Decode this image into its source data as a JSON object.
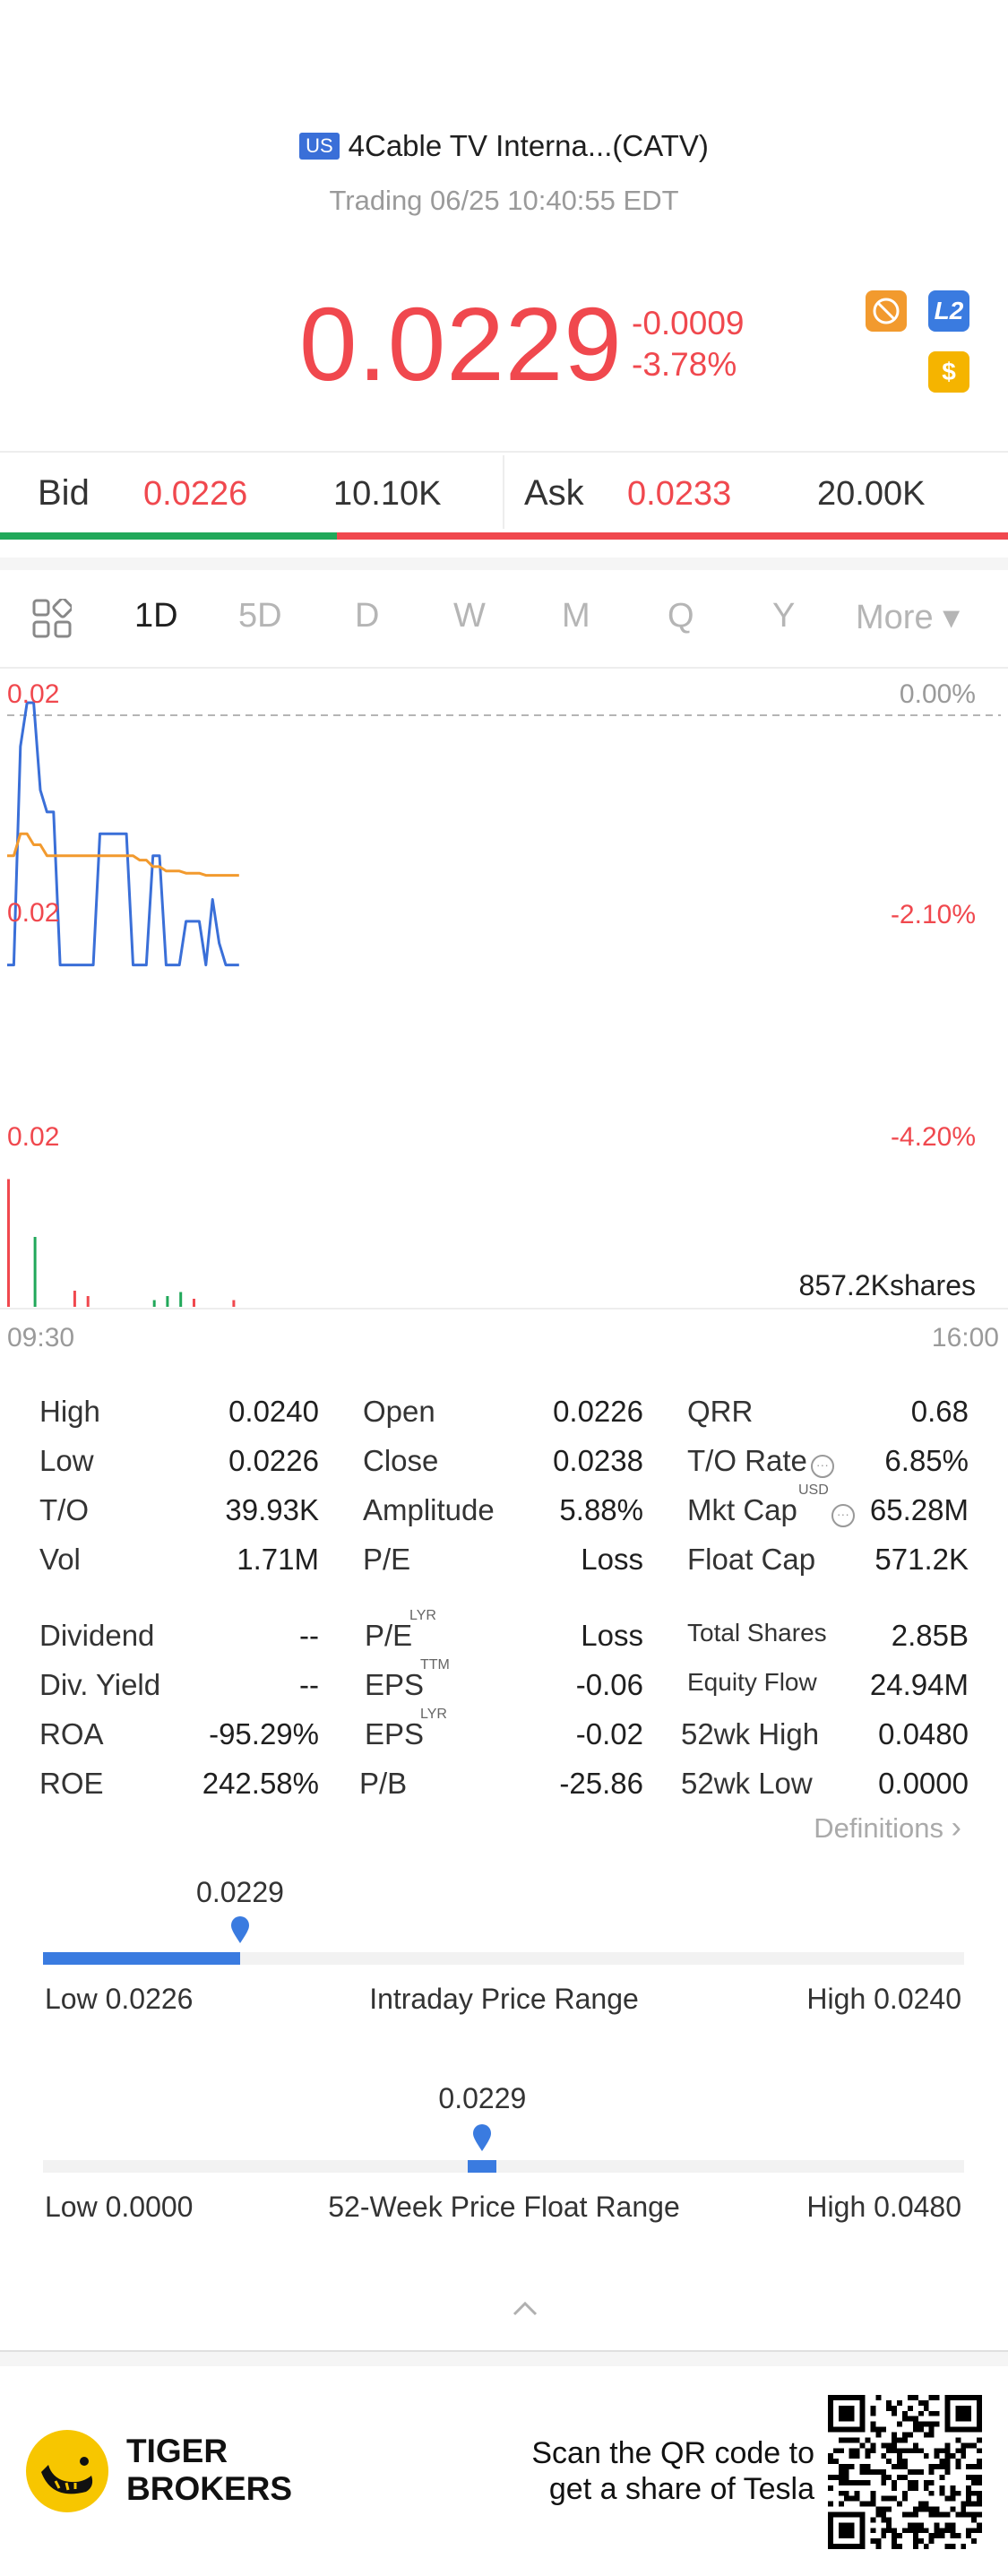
{
  "header": {
    "market_badge": "US",
    "title": "4Cable TV Interna...(CATV)",
    "status": "Trading 06/25 10:40:55 EDT"
  },
  "quote": {
    "price": "0.0229",
    "change": "-0.0009",
    "change_pct": "-3.78%",
    "badges": [
      {
        "name": "no-trade-icon",
        "label": "⊘",
        "color": "#f29a2e"
      },
      {
        "name": "level2-icon",
        "label": "L2",
        "color": "#3a7be0"
      },
      {
        "name": "dollar-icon",
        "label": "$",
        "color": "#f5b400"
      }
    ]
  },
  "bidask": {
    "bid_label": "Bid",
    "bid_price": "0.0226",
    "bid_size": "10.10K",
    "ask_label": "Ask",
    "ask_price": "0.0233",
    "ask_size": "20.00K",
    "bid_share": 0.334
  },
  "tabs": {
    "items": [
      "1D",
      "5D",
      "D",
      "W",
      "M",
      "Q",
      "Y",
      "More ▾"
    ],
    "active": "1D"
  },
  "chart_data": {
    "type": "line",
    "y_left_ticks": [
      "0.02",
      "0.02",
      "0.02"
    ],
    "y_right_ticks": [
      "0.00%",
      "-2.10%",
      "-4.20%"
    ],
    "x_ticks": [
      "09:30",
      "16:00"
    ],
    "volume_label": "857.2Kshares",
    "ylim": [
      0.02193,
      0.0238
    ],
    "series": [
      {
        "color": "#3a6fd8",
        "values": [
          0.0226,
          0.0226,
          0.0236,
          0.0238,
          0.0238,
          0.0234,
          0.0233,
          0.0233,
          0.0226,
          0.0226,
          0.0226,
          0.0226,
          0.0226,
          0.0226,
          0.0232,
          0.0232,
          0.0232,
          0.0232,
          0.0232,
          0.0226,
          0.0226,
          0.0226,
          0.0231,
          0.0231,
          0.0226,
          0.0226,
          0.0226,
          0.0228,
          0.0228,
          0.0228,
          0.0226,
          0.0229,
          0.0227,
          0.0226,
          0.0226,
          0.0226
        ]
      },
      {
        "color": "#f29a2e",
        "values": [
          0.0231,
          0.0231,
          0.0232,
          0.0232,
          0.02315,
          0.02315,
          0.0231,
          0.0231,
          0.0231,
          0.0231,
          0.0231,
          0.0231,
          0.0231,
          0.0231,
          0.0231,
          0.0231,
          0.0231,
          0.0231,
          0.0231,
          0.0231,
          0.02308,
          0.02308,
          0.02305,
          0.02305,
          0.02303,
          0.02303,
          0.02303,
          0.02302,
          0.02302,
          0.02302,
          0.02301,
          0.02301,
          0.02301,
          0.02301,
          0.02301,
          0.02301
        ]
      }
    ],
    "volume": [
      {
        "v": 0.95,
        "c": "#f0484e"
      },
      {
        "v": 0.0,
        "c": "#f0484e"
      },
      {
        "v": 0.0,
        "c": "#f0484e"
      },
      {
        "v": 0.0,
        "c": "#f0484e"
      },
      {
        "v": 0.52,
        "c": "#21a85a"
      },
      {
        "v": 0.0,
        "c": "#f0484e"
      },
      {
        "v": 0.0,
        "c": "#f0484e"
      },
      {
        "v": 0.0,
        "c": "#f0484e"
      },
      {
        "v": 0.0,
        "c": "#f0484e"
      },
      {
        "v": 0.0,
        "c": "#f0484e"
      },
      {
        "v": 0.12,
        "c": "#f0484e"
      },
      {
        "v": 0.0,
        "c": "#f0484e"
      },
      {
        "v": 0.08,
        "c": "#f0484e"
      },
      {
        "v": 0.0,
        "c": "#f0484e"
      },
      {
        "v": 0.0,
        "c": "#f0484e"
      },
      {
        "v": 0.0,
        "c": "#f0484e"
      },
      {
        "v": 0.0,
        "c": "#f0484e"
      },
      {
        "v": 0.0,
        "c": "#f0484e"
      },
      {
        "v": 0.0,
        "c": "#f0484e"
      },
      {
        "v": 0.0,
        "c": "#f0484e"
      },
      {
        "v": 0.0,
        "c": "#f0484e"
      },
      {
        "v": 0.0,
        "c": "#f0484e"
      },
      {
        "v": 0.05,
        "c": "#21a85a"
      },
      {
        "v": 0.0,
        "c": "#f0484e"
      },
      {
        "v": 0.08,
        "c": "#21a85a"
      },
      {
        "v": 0.0,
        "c": "#f0484e"
      },
      {
        "v": 0.11,
        "c": "#21a85a"
      },
      {
        "v": 0.0,
        "c": "#f0484e"
      },
      {
        "v": 0.06,
        "c": "#f0484e"
      },
      {
        "v": 0.0,
        "c": "#f0484e"
      },
      {
        "v": 0.0,
        "c": "#f0484e"
      },
      {
        "v": 0.0,
        "c": "#f0484e"
      },
      {
        "v": 0.0,
        "c": "#f0484e"
      },
      {
        "v": 0.0,
        "c": "#f0484e"
      },
      {
        "v": 0.05,
        "c": "#f0484e"
      },
      {
        "v": 0.0,
        "c": "#f0484e"
      }
    ]
  },
  "stats": {
    "col1": [
      {
        "label": "High",
        "value": "0.0240"
      },
      {
        "label": "Low",
        "value": "0.0226"
      },
      {
        "label": "T/O",
        "value": "39.93K"
      },
      {
        "label": "Vol",
        "value": "1.71M"
      },
      {
        "label": "Dividend",
        "value": "--"
      },
      {
        "label": "Div. Yield",
        "value": "--"
      },
      {
        "label": "ROA",
        "value": "-95.29%"
      },
      {
        "label": "ROE",
        "value": "242.58%"
      }
    ],
    "col2": [
      {
        "label": "Open",
        "value": "0.0226"
      },
      {
        "label": "Close",
        "value": "0.0238"
      },
      {
        "label": "Amplitude",
        "value": "5.88%"
      },
      {
        "label": "P/E",
        "value": "Loss"
      },
      {
        "label": "P/E",
        "sup": "LYR",
        "value": "Loss"
      },
      {
        "label": "EPS",
        "sup": "TTM",
        "value": "-0.06"
      },
      {
        "label": "EPS",
        "sup": "LYR",
        "value": "-0.02"
      },
      {
        "label": "P/B",
        "value": "-25.86"
      }
    ],
    "col3": [
      {
        "label": "QRR",
        "value": "0.68"
      },
      {
        "label": "T/O Rate",
        "value": "6.85%"
      },
      {
        "label": "Mkt Cap",
        "sup": "USD",
        "value": "65.28M"
      },
      {
        "label": "Float Cap",
        "value": "571.2K"
      },
      {
        "label": "Total Shares",
        "value": "2.85B"
      },
      {
        "label": "Equity Flow",
        "value": "24.94M"
      },
      {
        "label": "52wk High",
        "value": "0.0480"
      },
      {
        "label": "52wk Low",
        "value": "0.0000"
      }
    ],
    "definitions_label": "Definitions"
  },
  "intraday_range": {
    "current": "0.0229",
    "low_label": "Low 0.0226",
    "title": "Intraday Price Range",
    "high_label": "High 0.0240",
    "fill_fraction": 0.214
  },
  "week52_range": {
    "current": "0.0229",
    "low_label": "Low 0.0000",
    "title": "52-Week Price Float Range",
    "high_label": "High 0.0480",
    "fill_fraction": 0.477
  },
  "footer": {
    "brand_line1": "TIGER",
    "brand_line2": "BROKERS",
    "promo_line1": "Scan the QR code to",
    "promo_line2": "get a share of Tesla"
  }
}
